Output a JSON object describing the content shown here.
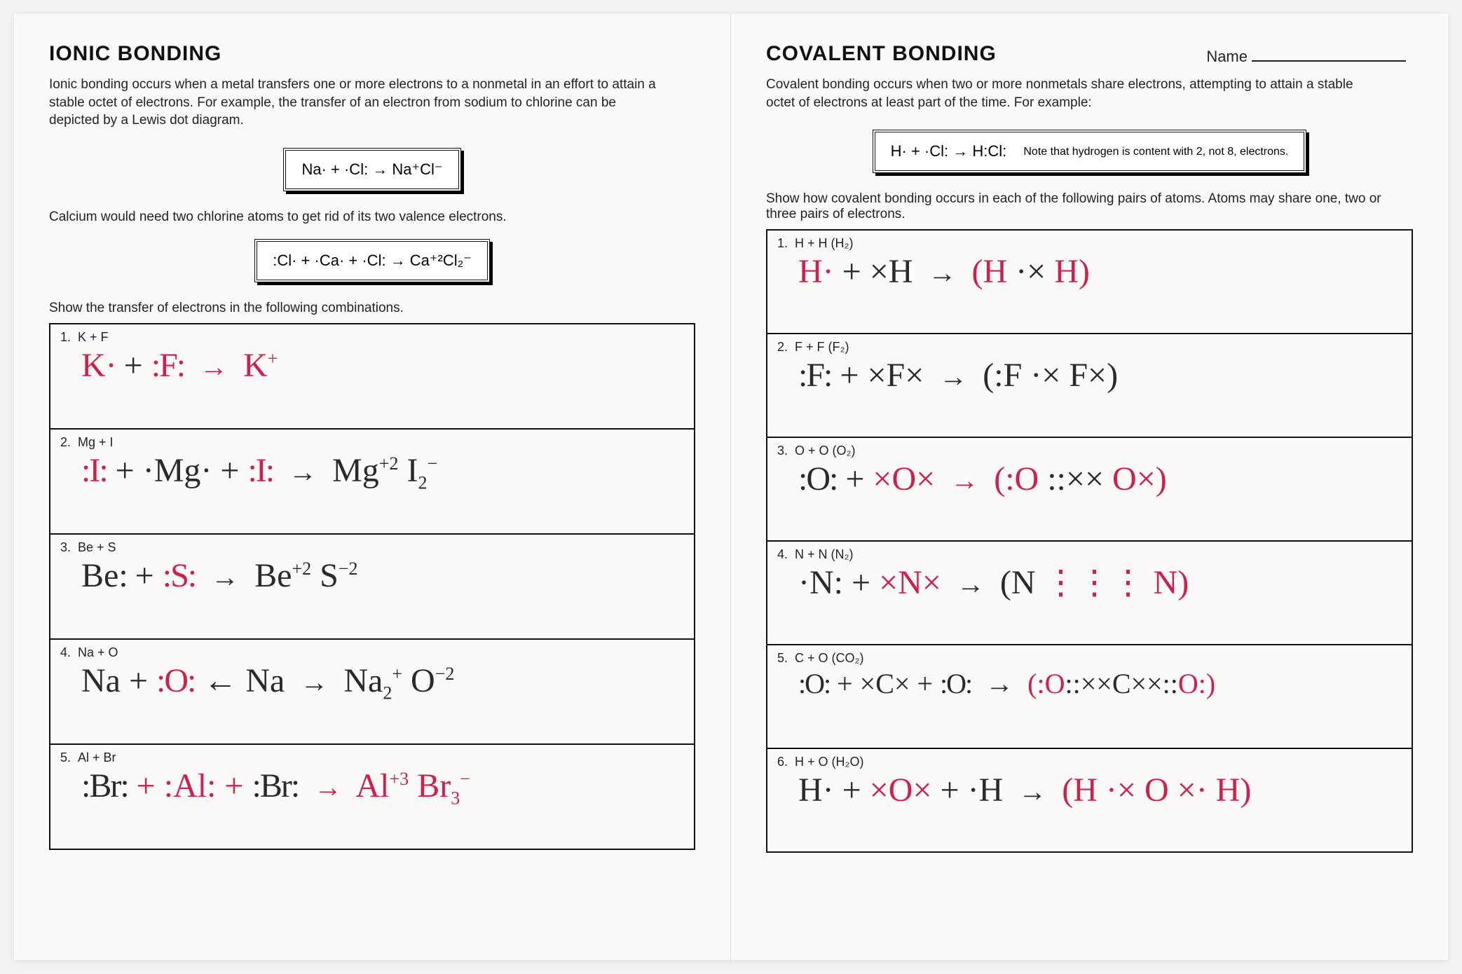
{
  "left": {
    "title": "IONIC BONDING",
    "intro": "Ionic bonding occurs when a metal transfers one or more electrons to a nonmetal in an effort to attain a stable octet of electrons. For example, the transfer of an electron from sodium to chlorine can be depicted by a Lewis dot diagram.",
    "example1": "Na· + ·Cl: → Na⁺Cl⁻",
    "mid_text": "Calcium would need two chlorine atoms to get rid of its two valence electrons.",
    "example2": ":Cl· + ·Ca· + ·Cl: → Ca⁺²Cl₂⁻",
    "instruction": "Show the transfer of electrons in the following combinations.",
    "problems": [
      {
        "n": "1.",
        "q": "K + F",
        "ans": "K· + :F: → K⁺",
        "color": "red"
      },
      {
        "n": "2.",
        "q": "Mg + I",
        "ans": ":I: + ·Mg· + :I: → Mg⁺² I₂⁻",
        "color": "mix"
      },
      {
        "n": "3.",
        "q": "Be + S",
        "ans": "Be: + :S: → Be⁺² S⁻²",
        "color": "mix"
      },
      {
        "n": "4.",
        "q": "Na + O",
        "ans": "Na + :O: ← Na → Na₂⁺ O⁻²",
        "color": "mix"
      },
      {
        "n": "5.",
        "q": "Al + Br",
        "ans": ":Br: + :Al: + :Br: → Al⁺³ Br₃⁻",
        "color": "mix"
      }
    ]
  },
  "right": {
    "title": "COVALENT BONDING",
    "name_label": "Name",
    "intro": "Covalent bonding occurs when two or more nonmetals share electrons, attempting to attain a stable octet of electrons at least part of the time. For example:",
    "example": "H· + ·Cl: → H:Cl:",
    "example_note": "Note that hydrogen is content with 2, not 8, electrons.",
    "instruction": "Show how covalent bonding occurs in each of the following pairs of atoms. Atoms may share one, two or three pairs of electrons.",
    "problems": [
      {
        "n": "1.",
        "q": "H + H (H₂)",
        "ans": "H· + ×H → (H ⋅× H)"
      },
      {
        "n": "2.",
        "q": "F + F (F₂)",
        "ans": ":F: + ×F× → (:F ⋅× F×)"
      },
      {
        "n": "3.",
        "q": "O + O (O₂)",
        "ans": ":O: + ×O× → (:O ⋅⋅×× O×)"
      },
      {
        "n": "4.",
        "q": "N + N (N₂)",
        "ans": "·N: + ×N× → (N ⋮⋮⋮ N)"
      },
      {
        "n": "5.",
        "q": "C + O (CO₂)",
        "ans": ":O: + ×C× + :O: → (:O ⋅⋅×× C ××⋅⋅ O:)"
      },
      {
        "n": "6.",
        "q": "H + O (H₂O)",
        "ans": "H· + ×O× + ·H → (H ⋅× O ×⋅ H)"
      }
    ]
  },
  "colors": {
    "handwriting_red": "#d21e4a",
    "handwriting_black": "#2a2a2a",
    "print_black": "#111111",
    "paper": "#fbfaf8"
  }
}
